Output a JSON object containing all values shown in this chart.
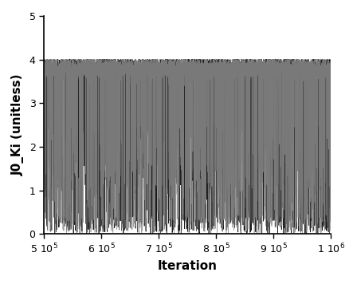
{
  "title": "",
  "xlabel": "Iteration",
  "ylabel": "J0_Ki (unitless)",
  "xlim": [
    500000,
    1000000
  ],
  "ylim": [
    0,
    5
  ],
  "yticks": [
    0,
    1,
    2,
    3,
    4,
    5
  ],
  "xticks": [
    500000,
    600000,
    700000,
    800000,
    900000,
    1000000
  ],
  "n_points": 5000,
  "x_start": 500000,
  "x_end": 1000000,
  "run_colors": [
    "#1a1a1a",
    "#444444",
    "#888888"
  ],
  "run_alphas": [
    1.0,
    0.9,
    0.8
  ],
  "y_high_mean": 3.8,
  "y_high_std": 0.12,
  "y_low_prob": 0.15,
  "linewidth": 0.5,
  "background_color": "#ffffff",
  "figsize": [
    4.48,
    3.56
  ],
  "dpi": 100
}
